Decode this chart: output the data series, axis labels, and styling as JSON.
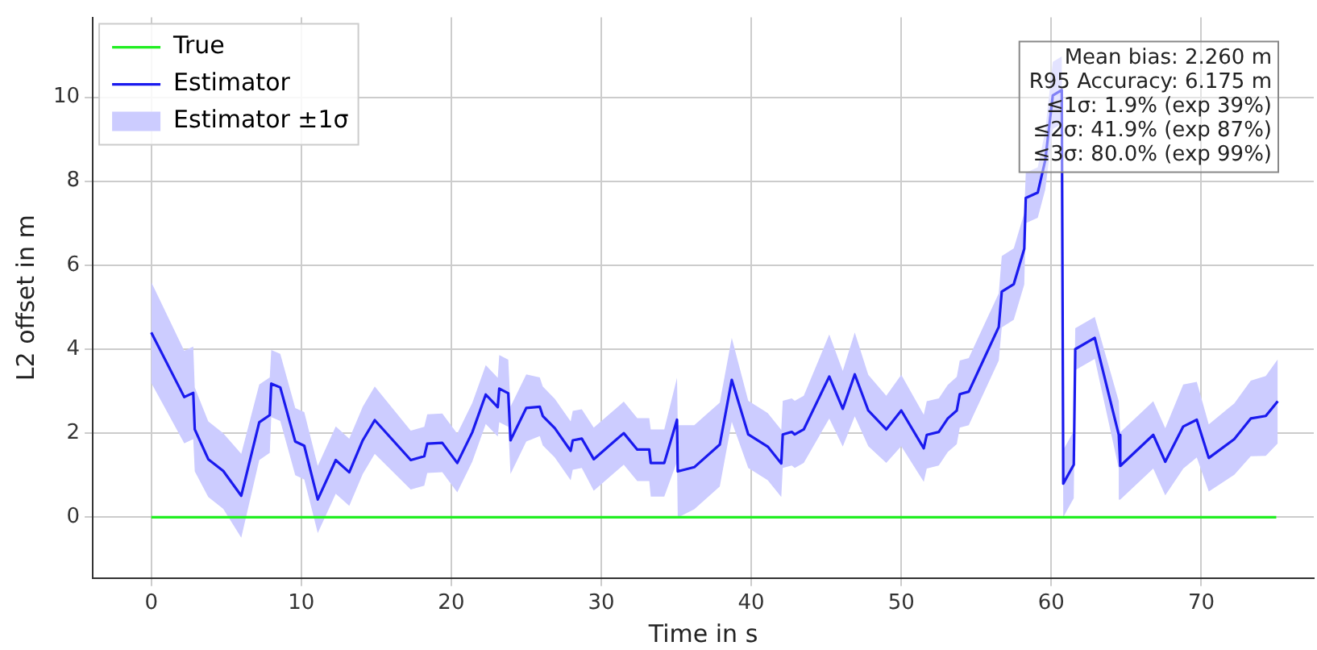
{
  "chart_data": {
    "type": "line",
    "xlabel": "Time in s",
    "ylabel": "L2 offset in m",
    "xlim": [
      -3.9,
      77.5
    ],
    "xticks": [
      0,
      10,
      20,
      30,
      40,
      50,
      60,
      70
    ],
    "ylim": [
      -1.45,
      11.9
    ],
    "yticks": [
      0,
      2,
      4,
      6,
      8,
      10
    ],
    "grid": true,
    "legend": "top left",
    "marker": "none",
    "line_style": "solid",
    "annotations": [
      "Mean bias: 2.260 m",
      "R95 Accuracy: 6.175 m",
      "≤1σ: 1.9% (exp 39%)",
      "≤2σ: 41.9% (exp 87%)",
      "≤3σ: 80.0% (exp 99%)"
    ],
    "series": [
      {
        "name": "True",
        "type": "line",
        "color": "#22ee22",
        "x": [
          0,
          75
        ],
        "values": [
          0,
          0
        ]
      },
      {
        "name": "Estimator",
        "type": "line",
        "color": "#1a1aee",
        "x": [
          0,
          2.2,
          2.8,
          2.9,
          3.8,
          4.8,
          6.0,
          7.2,
          7.9,
          8.0,
          8.6,
          9.6,
          10.2,
          11.1,
          12.3,
          13.2,
          14.1,
          14.9,
          17.3,
          18.2,
          18.4,
          19.4,
          20.4,
          21.4,
          22.3,
          23.1,
          23.2,
          23.8,
          23.95,
          25.0,
          25.9,
          26.1,
          26.9,
          27.96,
          28.1,
          28.7,
          29.5,
          31.5,
          32.4,
          33.2,
          33.3,
          34.2,
          35.05,
          35.1,
          36.2,
          37.9,
          38.7,
          39.8,
          41.1,
          42.0,
          42.1,
          42.7,
          42.9,
          43.5,
          45.2,
          46.1,
          46.9,
          47.8,
          49.0,
          50.0,
          51.5,
          51.7,
          52.5,
          53.1,
          53.7,
          53.9,
          54.5,
          55.5,
          56.5,
          56.7,
          57.5,
          58.2,
          58.3,
          59.1,
          59.6,
          60.1,
          60.7,
          60.8,
          61.5,
          61.6,
          62.9,
          64.5,
          64.6,
          66.8,
          67.6,
          68.8,
          69.7,
          70.5,
          72.2,
          73.3,
          74.3,
          75.1
        ],
        "values": [
          4.4,
          2.86,
          2.96,
          2.09,
          1.38,
          1.1,
          0.51,
          2.26,
          2.43,
          3.18,
          3.09,
          1.8,
          1.7,
          0.42,
          1.36,
          1.07,
          1.83,
          2.31,
          1.36,
          1.45,
          1.75,
          1.77,
          1.29,
          2.02,
          2.92,
          2.62,
          3.06,
          2.95,
          1.83,
          2.6,
          2.63,
          2.41,
          2.12,
          1.58,
          1.83,
          1.87,
          1.38,
          2.0,
          1.61,
          1.61,
          1.29,
          1.29,
          2.32,
          1.09,
          1.19,
          1.73,
          3.27,
          1.97,
          1.68,
          1.28,
          1.97,
          2.03,
          1.97,
          2.09,
          3.35,
          2.58,
          3.4,
          2.54,
          2.09,
          2.54,
          1.64,
          1.96,
          2.03,
          2.35,
          2.54,
          2.93,
          2.99,
          3.76,
          4.53,
          5.37,
          5.55,
          6.39,
          7.6,
          7.73,
          8.5,
          10.04,
          10.17,
          0.8,
          1.25,
          4.0,
          4.27,
          1.96,
          1.22,
          1.96,
          1.32,
          2.16,
          2.32,
          1.41,
          1.86,
          2.35,
          2.41,
          2.76
        ]
      },
      {
        "name": "Estimator ±1σ",
        "type": "area",
        "color": "#ccccff",
        "x": [
          0,
          2.2,
          2.8,
          2.9,
          3.8,
          4.8,
          6.0,
          7.2,
          7.9,
          8.0,
          8.6,
          9.6,
          10.2,
          11.1,
          12.3,
          13.2,
          14.1,
          14.9,
          17.3,
          18.2,
          18.4,
          19.4,
          20.4,
          21.4,
          22.3,
          23.1,
          23.2,
          23.8,
          23.95,
          25.0,
          25.9,
          26.1,
          26.9,
          27.96,
          28.1,
          28.7,
          29.5,
          31.5,
          32.4,
          33.2,
          33.3,
          34.2,
          35.05,
          35.1,
          36.2,
          37.9,
          38.7,
          39.8,
          41.1,
          42.0,
          42.1,
          42.7,
          42.9,
          43.5,
          45.2,
          46.1,
          46.9,
          47.8,
          49.0,
          50.0,
          51.5,
          51.7,
          52.5,
          53.1,
          53.7,
          53.9,
          54.5,
          55.5,
          56.5,
          56.7,
          57.5,
          58.2,
          58.3,
          59.1,
          59.6,
          60.1,
          60.7,
          60.8,
          61.5,
          61.6,
          62.9,
          64.5,
          64.6,
          66.8,
          67.6,
          68.8,
          69.7,
          70.5,
          72.2,
          73.3,
          74.3,
          75.1
        ],
        "values": [
          null,
          null,
          null,
          null,
          null,
          null,
          null,
          null,
          null,
          null,
          null,
          null,
          null,
          null,
          null,
          null,
          null,
          null,
          null,
          null,
          null,
          null,
          null,
          null,
          null,
          null,
          null,
          null,
          null,
          null,
          null,
          null,
          null,
          null,
          null,
          null,
          null,
          null,
          null,
          null,
          null,
          null,
          null,
          null,
          null,
          null,
          null,
          null,
          null,
          null,
          null,
          null,
          null,
          null,
          null,
          null,
          null,
          null,
          null,
          null,
          null,
          null,
          null,
          null,
          null,
          null,
          null,
          null,
          null,
          null,
          null,
          null,
          null,
          null,
          null,
          null,
          null,
          null,
          null,
          null,
          null,
          null,
          null,
          null,
          null,
          null,
          null,
          null,
          null,
          null,
          null,
          null
        ],
        "lower": [
          3.2,
          1.76,
          1.86,
          1.09,
          0.48,
          0.2,
          -0.49,
          1.36,
          1.53,
          2.38,
          2.29,
          1.0,
          0.9,
          -0.38,
          0.56,
          0.27,
          1.03,
          1.51,
          0.66,
          0.75,
          1.05,
          1.07,
          0.59,
          1.32,
          2.22,
          1.92,
          2.26,
          2.15,
          1.03,
          1.8,
          1.93,
          1.71,
          1.42,
          0.88,
          1.13,
          1.17,
          0.63,
          1.25,
          0.86,
          0.86,
          0.49,
          0.49,
          1.32,
          -0.01,
          0.19,
          0.73,
          2.27,
          1.17,
          0.88,
          0.48,
          1.17,
          1.23,
          1.17,
          1.29,
          2.35,
          1.68,
          2.4,
          1.69,
          1.29,
          1.69,
          0.84,
          1.16,
          1.23,
          1.55,
          1.74,
          2.13,
          2.19,
          2.96,
          3.73,
          4.52,
          4.7,
          5.54,
          7.0,
          7.13,
          7.8,
          9.24,
          9.37,
          0.0,
          0.45,
          3.5,
          3.77,
          1.16,
          0.42,
          1.16,
          0.52,
          1.16,
          1.42,
          0.61,
          1.01,
          1.45,
          1.46,
          1.76
        ],
        "upper": [
          5.6,
          3.96,
          4.06,
          3.09,
          2.28,
          2.0,
          1.51,
          3.16,
          3.33,
          3.98,
          3.89,
          2.6,
          2.5,
          1.22,
          2.16,
          1.87,
          2.63,
          3.11,
          2.06,
          2.15,
          2.45,
          2.47,
          1.99,
          2.72,
          3.62,
          3.32,
          3.86,
          3.75,
          2.63,
          3.4,
          3.33,
          3.11,
          2.82,
          2.28,
          2.53,
          2.57,
          2.13,
          2.75,
          2.36,
          2.36,
          2.09,
          2.09,
          3.32,
          2.19,
          2.19,
          2.73,
          4.27,
          2.77,
          2.48,
          2.08,
          2.77,
          2.83,
          2.77,
          2.89,
          4.35,
          3.48,
          4.4,
          3.39,
          2.89,
          3.39,
          2.44,
          2.76,
          2.83,
          3.15,
          3.34,
          3.73,
          3.79,
          4.56,
          5.33,
          6.22,
          6.4,
          7.24,
          8.2,
          8.33,
          9.2,
          10.84,
          10.97,
          1.6,
          2.05,
          4.5,
          4.77,
          2.76,
          2.02,
          2.76,
          2.12,
          3.16,
          3.22,
          2.21,
          2.71,
          3.25,
          3.36,
          3.76
        ]
      }
    ]
  }
}
